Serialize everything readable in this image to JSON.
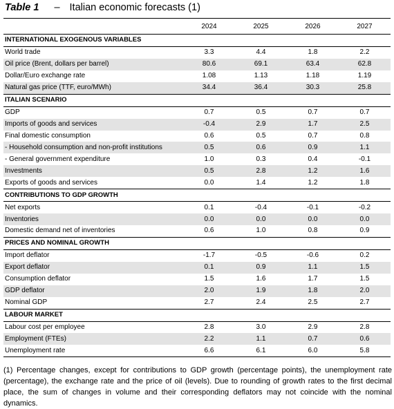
{
  "title": {
    "number": "Table 1",
    "dash": "–",
    "text": "Italian economic forecasts (1)"
  },
  "columns": [
    "",
    "2024",
    "2025",
    "2026",
    "2027"
  ],
  "sections": [
    {
      "heading": "INTERNATIONAL EXOGENOUS VARIABLES",
      "rows": [
        {
          "label": "World trade",
          "values": [
            "3.3",
            "4.4",
            "1.8",
            "2.2"
          ]
        },
        {
          "label": "Oil price (Brent, dollars per barrel)",
          "values": [
            "80.6",
            "69.1",
            "63.4",
            "62.8"
          ]
        },
        {
          "label": "Dollar/Euro exchange rate",
          "values": [
            "1.08",
            "1.13",
            "1.18",
            "1.19"
          ]
        },
        {
          "label": "Natural gas price (TTF, euro/MWh)",
          "values": [
            "34.4",
            "36.4",
            "30.3",
            "25.8"
          ]
        }
      ]
    },
    {
      "heading": "ITALIAN SCENARIO",
      "rows": [
        {
          "label": "GDP",
          "values": [
            "0.7",
            "0.5",
            "0.7",
            "0.7"
          ]
        },
        {
          "label": "Imports of goods and services",
          "values": [
            "-0.4",
            "2.9",
            "1.7",
            "2.5"
          ]
        },
        {
          "label": "Final domestic consumption",
          "values": [
            "0.6",
            "0.5",
            "0.7",
            "0.8"
          ]
        },
        {
          "label": " - Household consumption and non-profit institutions",
          "values": [
            "0.5",
            "0.6",
            "0.9",
            "1.1"
          ]
        },
        {
          "label": " - General government expenditure",
          "values": [
            "1.0",
            "0.3",
            "0.4",
            "-0.1"
          ]
        },
        {
          "label": "Investments",
          "values": [
            "0.5",
            "2.8",
            "1.2",
            "1.6"
          ]
        },
        {
          "label": "Exports of goods and services",
          "values": [
            "0.0",
            "1.4",
            "1.2",
            "1.8"
          ]
        }
      ]
    },
    {
      "heading": "CONTRIBUTIONS TO GDP GROWTH",
      "rows": [
        {
          "label": "Net exports",
          "values": [
            "0.1",
            "-0.4",
            "-0.1",
            "-0.2"
          ]
        },
        {
          "label": "Inventories",
          "values": [
            "0.0",
            "0.0",
            "0.0",
            "0.0"
          ]
        },
        {
          "label": "Domestic demand net of inventories",
          "values": [
            "0.6",
            "1.0",
            "0.8",
            "0.9"
          ]
        }
      ]
    },
    {
      "heading": "PRICES AND NOMINAL GROWTH",
      "rows": [
        {
          "label": "Import deflator",
          "values": [
            "-1.7",
            "-0.5",
            "-0.6",
            "0.2"
          ]
        },
        {
          "label": "Export deflator",
          "values": [
            "0.1",
            "0.9",
            "1.1",
            "1.5"
          ]
        },
        {
          "label": "Consumption deflator",
          "values": [
            "1.5",
            "1.6",
            "1.7",
            "1.5"
          ]
        },
        {
          "label": "GDP deflator",
          "values": [
            "2.0",
            "1.9",
            "1.8",
            "2.0"
          ]
        },
        {
          "label": "Nominal GDP",
          "values": [
            "2.7",
            "2.4",
            "2.5",
            "2.7"
          ]
        }
      ]
    },
    {
      "heading": "LABOUR MARKET",
      "rows": [
        {
          "label": "Labour cost per employee",
          "values": [
            "2.8",
            "3.0",
            "2.9",
            "2.8"
          ]
        },
        {
          "label": "Employment (FTEs)",
          "values": [
            "2.2",
            "1.1",
            "0.7",
            "0.6"
          ]
        },
        {
          "label": "Unemployment rate",
          "values": [
            "6.6",
            "6.1",
            "6.0",
            "5.8"
          ]
        }
      ]
    }
  ],
  "footnote": "(1) Percentage changes, except for contributions to GDP growth (percentage points), the unemployment rate (percentage), the exchange rate and the price of oil (levels). Due to rounding of growth rates to the first decimal place, the sum of changes in volume and their corresponding deflators may not coincide with the nominal dynamics."
}
